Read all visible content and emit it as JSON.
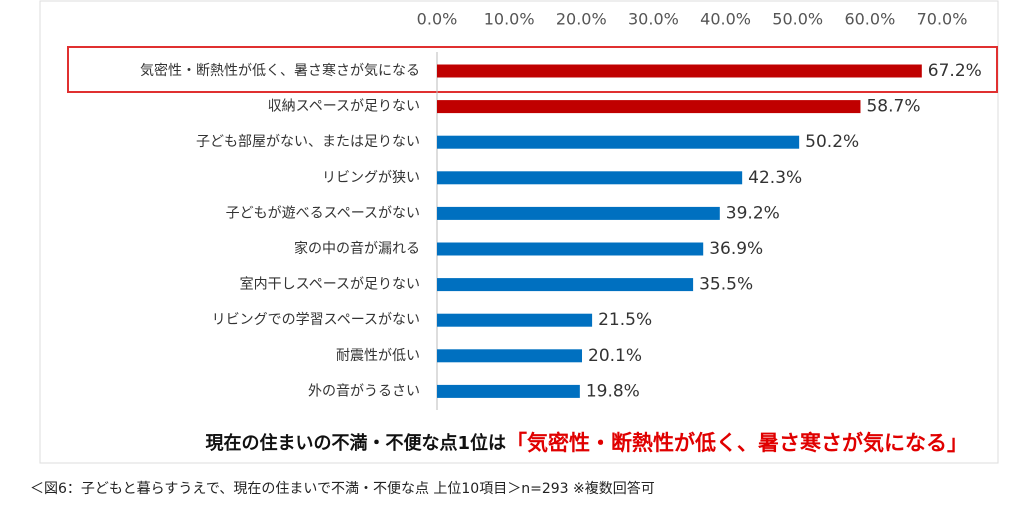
{
  "chart_data": {
    "type": "bar",
    "orientation": "horizontal",
    "categories": [
      "気密性・断熱性が低く、暑さ寒さが気になる",
      "収納スペースが足りない",
      "子ども部屋がない、または足りない",
      "リビングが狭い",
      "子どもが遊べるスペースがない",
      "家の中の音が漏れる",
      "室内干しスペースが足りない",
      "リビングでの学習スペースがない",
      "耐震性が低い",
      "外の音がうるさい"
    ],
    "values": [
      67.2,
      58.7,
      50.2,
      42.3,
      39.2,
      36.9,
      35.5,
      21.5,
      20.1,
      19.8
    ],
    "value_labels": [
      "67.2%",
      "58.7%",
      "50.2%",
      "42.3%",
      "39.2%",
      "36.9%",
      "35.5%",
      "21.5%",
      "20.1%",
      "19.8%"
    ],
    "colors": [
      "#c00000",
      "#c00000",
      "#0070c0",
      "#0070c0",
      "#0070c0",
      "#0070c0",
      "#0070c0",
      "#0070c0",
      "#0070c0",
      "#0070c0"
    ],
    "xlim": [
      0,
      70
    ],
    "xticks": [
      {
        "value": 0,
        "label": "0.0%"
      },
      {
        "value": 10,
        "label": "10.0%"
      },
      {
        "value": 20,
        "label": "20.0%"
      },
      {
        "value": 30,
        "label": "30.0%"
      },
      {
        "value": 40,
        "label": "40.0%"
      },
      {
        "value": 50,
        "label": "50.0%"
      },
      {
        "value": 60,
        "label": "60.0%"
      },
      {
        "value": 70,
        "label": "70.0%"
      }
    ],
    "grid": false,
    "headline": "現在の住まいの不満・不便な点1位は",
    "headline_highlight": "「気密性・断熱性が低く、暑さ寒さが気になる」",
    "caption": "＜図6：子どもと暮らすうえで、現在の住まいで不満・不便な点 上位10項目＞n=293 ※複数回答可"
  }
}
